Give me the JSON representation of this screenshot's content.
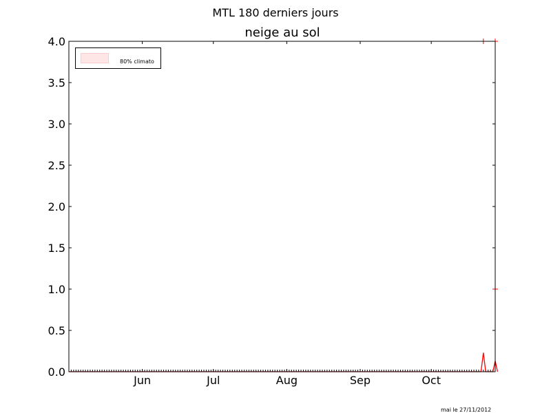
{
  "figure": {
    "suptitle": "MTL 180 derniers jours",
    "footer": "mai le 27/11/2012"
  },
  "legend": {
    "label": "80% climato",
    "patch_color": "#ffe6e6",
    "patch_edge": "#ffcccc"
  },
  "colors": {
    "series": "#ff0000"
  },
  "chart_data": {
    "type": "line",
    "title": "neige au sol",
    "xlabel": "",
    "ylabel": "",
    "ylim": [
      0,
      4.0
    ],
    "xlim": [
      "2012-05-01",
      "2012-10-28"
    ],
    "grid": false,
    "legend_position": "top-left",
    "yticks": [
      "0.0",
      "0.5",
      "1.0",
      "1.5",
      "2.0",
      "2.5",
      "3.0",
      "3.5",
      "4.0"
    ],
    "xtick_labels": [
      {
        "label": "Jun",
        "date": "2012-06-01"
      },
      {
        "label": "Jul",
        "date": "2012-07-01"
      },
      {
        "label": "Aug",
        "date": "2012-08-01"
      },
      {
        "label": "Sep",
        "date": "2012-09-01"
      },
      {
        "label": "Oct",
        "date": "2012-10-01"
      }
    ],
    "series": [
      {
        "kind": "line",
        "color": "#ff0000",
        "points": [
          {
            "date": "2012-05-01",
            "value": 0
          },
          {
            "date": "2012-10-22",
            "value": 0
          },
          {
            "date": "2012-10-23",
            "value": 0.23
          },
          {
            "date": "2012-10-24",
            "value": 0
          },
          {
            "date": "2012-10-27",
            "value": 0
          },
          {
            "date": "2012-10-28",
            "value": 0.13
          },
          {
            "date": "2012-10-29",
            "value": 0
          }
        ]
      },
      {
        "kind": "markers",
        "color": "#ff0000",
        "marker": "+",
        "points": [
          {
            "date": "2012-10-28",
            "value": 1.0
          },
          {
            "date": "2012-10-23",
            "value": 4.0
          },
          {
            "date": "2012-10-28",
            "value": 4.0
          }
        ]
      }
    ]
  }
}
